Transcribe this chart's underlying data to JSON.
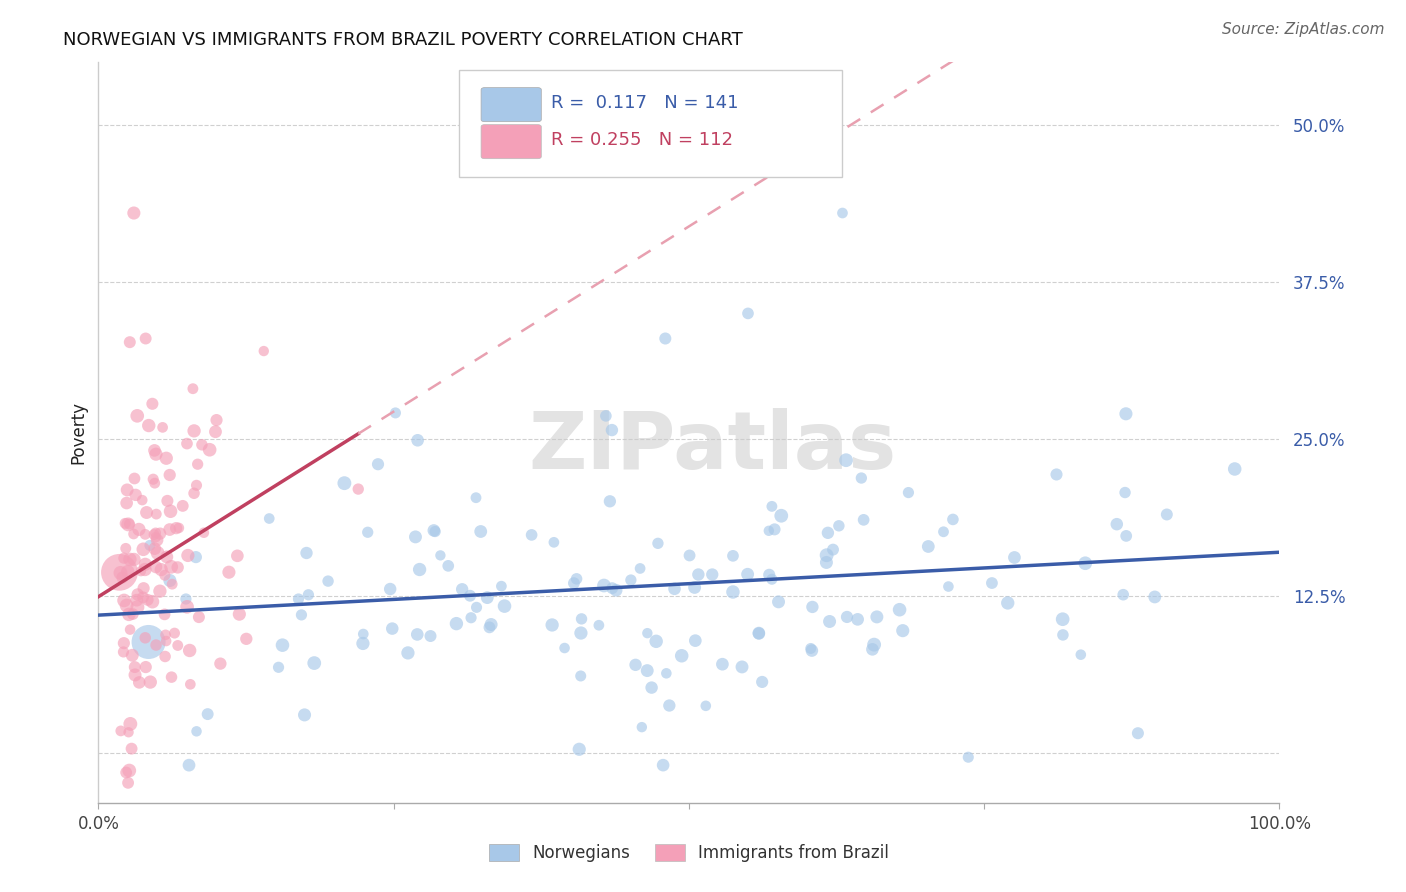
{
  "title": "NORWEGIAN VS IMMIGRANTS FROM BRAZIL POVERTY CORRELATION CHART",
  "source": "Source: ZipAtlas.com",
  "ylabel": "Poverty",
  "xlim": [
    0.0,
    1.0
  ],
  "ylim": [
    -0.04,
    0.55
  ],
  "yticks": [
    0.0,
    0.125,
    0.25,
    0.375,
    0.5
  ],
  "ytick_labels": [
    "",
    "12.5%",
    "25.0%",
    "37.5%",
    "50.0%"
  ],
  "xticks": [
    0.0,
    0.25,
    0.5,
    0.75,
    1.0
  ],
  "xtick_labels": [
    "0.0%",
    "",
    "",
    "",
    "100.0%"
  ],
  "norwegian_R": 0.117,
  "norwegian_N": 141,
  "brazil_R": 0.255,
  "brazil_N": 112,
  "norwegian_color": "#a8c8e8",
  "brazil_color": "#f4a0b8",
  "trend_norwegian_color": "#3a5ca8",
  "trend_brazil_solid_color": "#c04060",
  "trend_brazil_dash_color": "#e8a0b0",
  "legend_norwegian_label": "Norwegians",
  "legend_brazil_label": "Immigrants from Brazil",
  "watermark": "ZIPatlas",
  "background_color": "#ffffff",
  "grid_color": "#d0d0d0",
  "title_fontsize": 13,
  "label_fontsize": 12,
  "tick_fontsize": 12,
  "source_fontsize": 11,
  "seed": 42
}
